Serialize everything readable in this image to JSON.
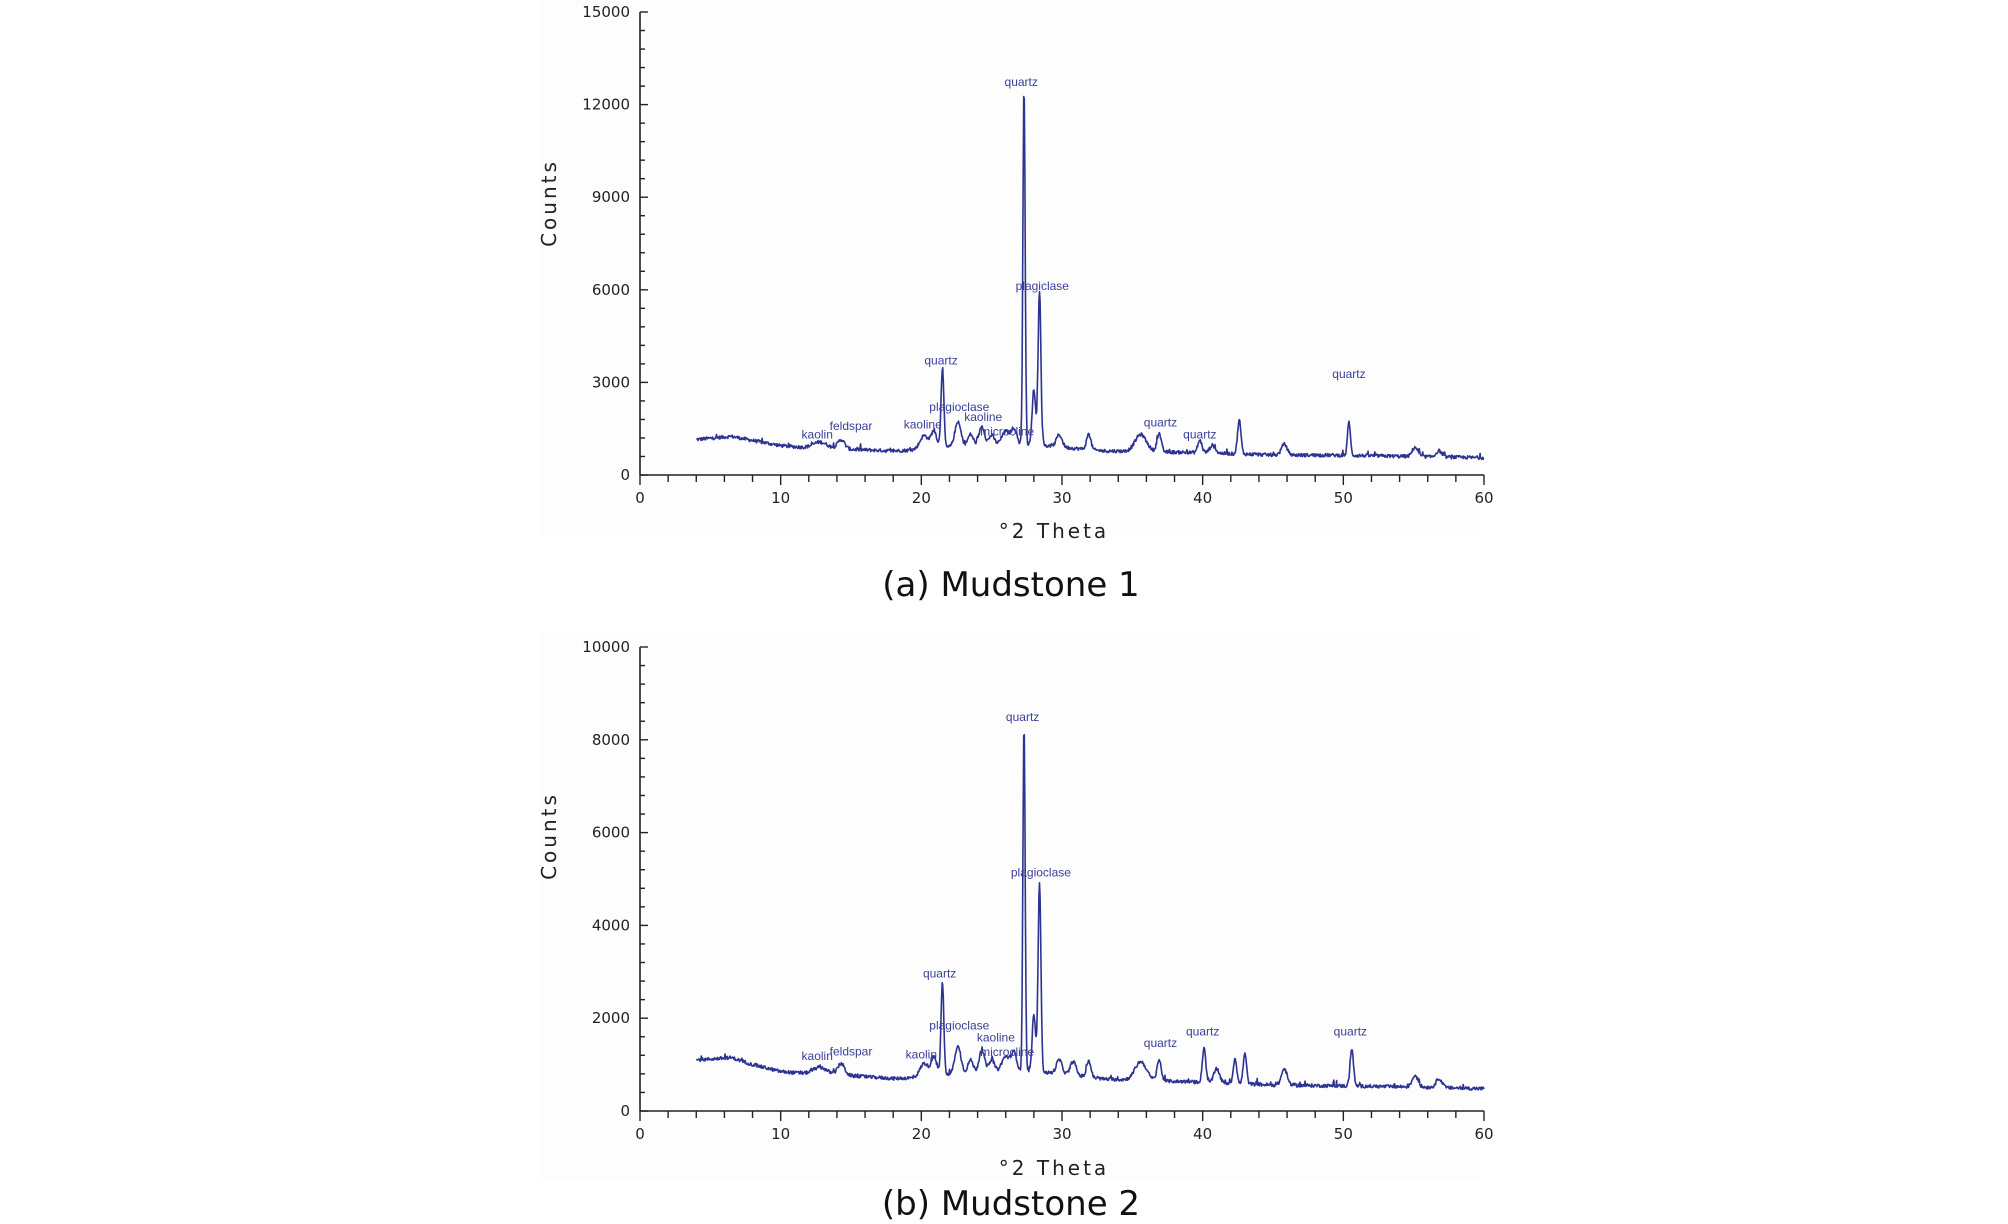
{
  "chart_data": [
    {
      "type": "line",
      "caption": "(a) Mudstone 1",
      "xlabel": "°2 Theta",
      "ylabel": "Counts",
      "xlim": [
        0,
        60
      ],
      "ylim": [
        0,
        15000
      ],
      "x_ticks": [
        0,
        10,
        20,
        30,
        40,
        50,
        60
      ],
      "y_ticks": [
        0,
        3000,
        6000,
        9000,
        12000,
        15000
      ],
      "series_color": "#2c3390",
      "baseline": [
        [
          4,
          1150
        ],
        [
          6.5,
          1250
        ],
        [
          8,
          1120
        ],
        [
          10,
          950
        ],
        [
          12,
          880
        ],
        [
          15,
          830
        ],
        [
          18,
          780
        ],
        [
          20,
          820
        ],
        [
          22,
          900
        ],
        [
          24,
          920
        ],
        [
          26,
          950
        ],
        [
          28,
          980
        ],
        [
          30,
          900
        ],
        [
          33,
          780
        ],
        [
          36,
          760
        ],
        [
          40,
          720
        ],
        [
          45,
          650
        ],
        [
          50,
          640
        ],
        [
          55,
          600
        ],
        [
          60,
          560
        ]
      ],
      "peaks": [
        [
          12.8,
          200,
          0.5
        ],
        [
          14.3,
          300,
          0.25
        ],
        [
          20.2,
          450,
          0.3
        ],
        [
          20.9,
          550,
          0.2
        ],
        [
          21.5,
          2600,
          0.1
        ],
        [
          22.6,
          800,
          0.22
        ],
        [
          23.5,
          400,
          0.2
        ],
        [
          24.3,
          650,
          0.2
        ],
        [
          25.0,
          350,
          0.2
        ],
        [
          26.0,
          450,
          0.3
        ],
        [
          26.6,
          500,
          0.2
        ],
        [
          27.3,
          11600,
          0.08
        ],
        [
          28.0,
          1800,
          0.12
        ],
        [
          28.4,
          5000,
          0.1
        ],
        [
          29.8,
          400,
          0.2
        ],
        [
          31.9,
          500,
          0.15
        ],
        [
          35.6,
          550,
          0.4
        ],
        [
          36.9,
          600,
          0.15
        ],
        [
          39.8,
          400,
          0.15
        ],
        [
          40.7,
          250,
          0.2
        ],
        [
          42.6,
          1100,
          0.12
        ],
        [
          45.8,
          350,
          0.2
        ],
        [
          50.4,
          1100,
          0.1
        ],
        [
          55.1,
          300,
          0.2
        ],
        [
          56.8,
          200,
          0.2
        ]
      ],
      "annotations": [
        {
          "text": "quartz",
          "x": 27.1,
          "y": 12600
        },
        {
          "text": "plagiclase",
          "x": 28.6,
          "y": 6000
        },
        {
          "text": "quartz",
          "x": 21.4,
          "y": 3580
        },
        {
          "text": "plagioclase",
          "x": 22.7,
          "y": 2080
        },
        {
          "text": "kaoline",
          "x": 20.1,
          "y": 1500
        },
        {
          "text": "kaoline",
          "x": 24.4,
          "y": 1750
        },
        {
          "text": "microcline",
          "x": 26.1,
          "y": 1280
        },
        {
          "text": "feldspar",
          "x": 15.0,
          "y": 1450
        },
        {
          "text": "kaolin",
          "x": 12.6,
          "y": 1180
        },
        {
          "text": "quartz",
          "x": 37.0,
          "y": 1570
        },
        {
          "text": "quartz",
          "x": 39.8,
          "y": 1180
        },
        {
          "text": "quartz",
          "x": 50.4,
          "y": 3150
        }
      ]
    },
    {
      "type": "line",
      "caption": "(b) Mudstone 2",
      "xlabel": "°2 Theta",
      "ylabel": "Counts",
      "xlim": [
        0,
        60
      ],
      "ylim": [
        0,
        10000
      ],
      "x_ticks": [
        0,
        10,
        20,
        30,
        40,
        50,
        60
      ],
      "y_ticks": [
        0,
        2000,
        4000,
        6000,
        8000,
        10000
      ],
      "series_color": "#2c3390",
      "baseline": [
        [
          4,
          1100
        ],
        [
          6.5,
          1150
        ],
        [
          8,
          1000
        ],
        [
          10,
          850
        ],
        [
          12,
          800
        ],
        [
          15,
          760
        ],
        [
          18,
          700
        ],
        [
          20,
          720
        ],
        [
          22,
          780
        ],
        [
          24,
          800
        ],
        [
          26,
          820
        ],
        [
          28,
          850
        ],
        [
          30,
          800
        ],
        [
          33,
          690
        ],
        [
          36,
          660
        ],
        [
          40,
          620
        ],
        [
          45,
          560
        ],
        [
          50,
          540
        ],
        [
          55,
          520
        ],
        [
          60,
          480
        ]
      ],
      "peaks": [
        [
          12.8,
          150,
          0.5
        ],
        [
          14.3,
          250,
          0.25
        ],
        [
          20.2,
          300,
          0.3
        ],
        [
          20.9,
          400,
          0.2
        ],
        [
          21.5,
          2000,
          0.1
        ],
        [
          22.6,
          600,
          0.22
        ],
        [
          23.5,
          300,
          0.2
        ],
        [
          24.3,
          500,
          0.2
        ],
        [
          25.0,
          300,
          0.2
        ],
        [
          26.0,
          350,
          0.3
        ],
        [
          26.6,
          400,
          0.2
        ],
        [
          27.3,
          7500,
          0.08
        ],
        [
          28.0,
          1200,
          0.12
        ],
        [
          28.4,
          4100,
          0.1
        ],
        [
          29.8,
          300,
          0.2
        ],
        [
          30.8,
          300,
          0.2
        ],
        [
          31.9,
          350,
          0.15
        ],
        [
          35.6,
          400,
          0.4
        ],
        [
          36.9,
          450,
          0.15
        ],
        [
          40.1,
          750,
          0.12
        ],
        [
          41.0,
          300,
          0.2
        ],
        [
          42.3,
          550,
          0.12
        ],
        [
          43.0,
          650,
          0.12
        ],
        [
          45.8,
          350,
          0.2
        ],
        [
          50.6,
          800,
          0.12
        ],
        [
          55.1,
          250,
          0.2
        ],
        [
          56.8,
          200,
          0.2
        ]
      ],
      "annotations": [
        {
          "text": "quartz",
          "x": 27.2,
          "y": 8400
        },
        {
          "text": "plagioclase",
          "x": 28.5,
          "y": 5050
        },
        {
          "text": "quartz",
          "x": 21.3,
          "y": 2880
        },
        {
          "text": "plagioclase",
          "x": 22.7,
          "y": 1760
        },
        {
          "text": "kaoline",
          "x": 25.3,
          "y": 1500
        },
        {
          "text": "microcline",
          "x": 26.1,
          "y": 1180
        },
        {
          "text": "kaolin",
          "x": 20.0,
          "y": 1130
        },
        {
          "text": "feldspar",
          "x": 15.0,
          "y": 1200
        },
        {
          "text": "kaolin",
          "x": 12.6,
          "y": 1100
        },
        {
          "text": "quartz",
          "x": 37.0,
          "y": 1380
        },
        {
          "text": "quartz",
          "x": 40.0,
          "y": 1630
        },
        {
          "text": "quartz",
          "x": 50.5,
          "y": 1630
        }
      ]
    }
  ]
}
